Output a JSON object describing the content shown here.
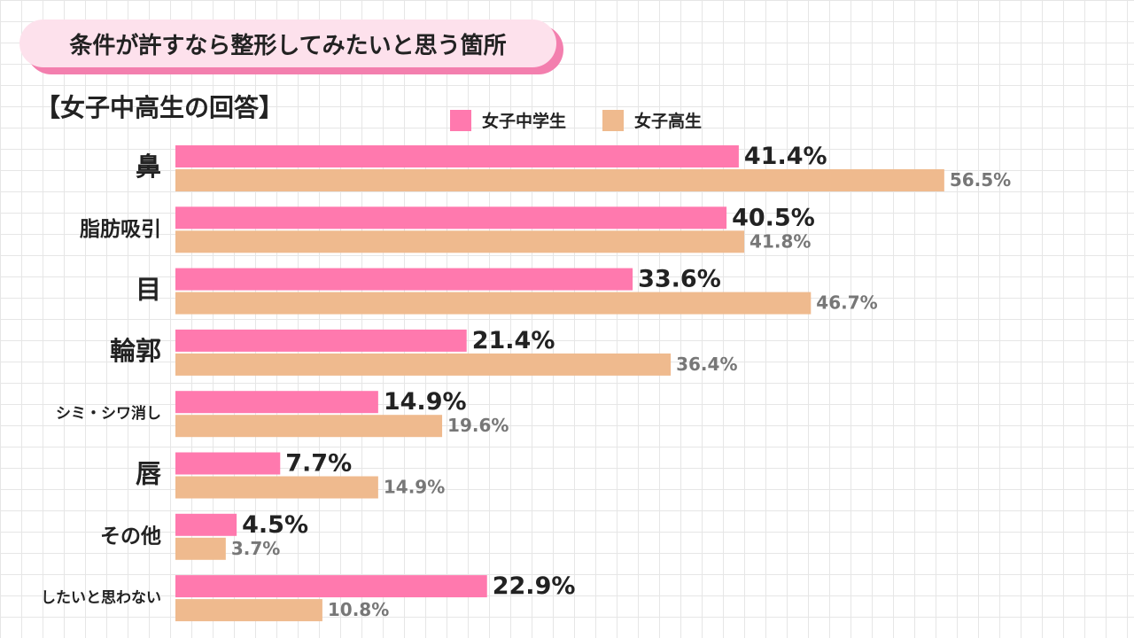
{
  "colors": {
    "series1": "#ff79ae",
    "series2": "#efba8e"
  },
  "chart_data": {
    "type": "bar",
    "orientation": "horizontal",
    "title": "条件が許すなら整形してみたいと思う箇所",
    "subtitle": "【女子中高生の回答】",
    "categories": [
      "鼻",
      "脂肪吸引",
      "目",
      "輪郭",
      "シミ・シワ消し",
      "唇",
      "その他",
      "したいと思わない"
    ],
    "series": [
      {
        "name": "女子中学生",
        "values": [
          41.4,
          40.5,
          33.6,
          21.4,
          14.9,
          7.7,
          4.5,
          22.9
        ]
      },
      {
        "name": "女子高生",
        "values": [
          56.5,
          41.8,
          46.7,
          36.4,
          19.6,
          14.9,
          3.7,
          10.8
        ]
      }
    ],
    "value_suffix": "%",
    "legend_position": "top",
    "xlim": [
      0,
      60
    ]
  }
}
